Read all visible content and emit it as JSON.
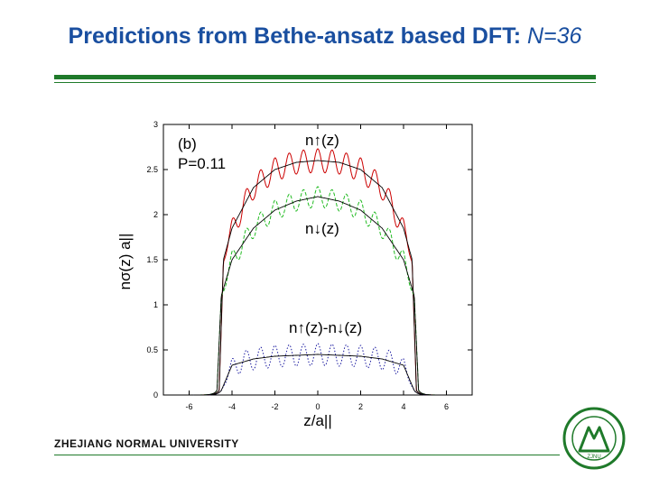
{
  "slide": {
    "title_main": "Predictions from Bethe-ansatz based DFT: ",
    "title_var": "N=36",
    "university": "ZHEJIANG NORMAL UNIVERSITY"
  },
  "logo": {
    "text": "ZJNU",
    "color": "#1f7a2a"
  },
  "chart_data": {
    "type": "line",
    "panel_label": "(b)",
    "parameter_label": "P=0.11",
    "xlabel": "z/a||",
    "ylabel": "nσ(z) a||",
    "xlim": [
      -7.2,
      7.2
    ],
    "ylim": [
      0,
      3
    ],
    "xticks": [
      "-6",
      "-4",
      "-2",
      "0",
      "2",
      "4",
      "6"
    ],
    "xtick_values": [
      -6,
      -4,
      -2,
      0,
      2,
      4,
      6
    ],
    "yticks": [
      "0",
      "0.5",
      "1",
      "1.5",
      "2",
      "2.5",
      "3"
    ],
    "ytick_values": [
      0,
      0.5,
      1,
      1.5,
      2,
      2.5,
      3
    ],
    "annotations": [
      "n↑(z)",
      "n↓(z)",
      "n↑(z)-n↓(z)"
    ],
    "series": [
      {
        "label": "n↑(z)",
        "color": "#cc0000",
        "style": "solid oscillating",
        "x": [
          -4.6,
          -4.4,
          -4.0,
          -3.0,
          -2.0,
          -1.0,
          0.0,
          1.0,
          2.0,
          3.0,
          4.0,
          4.4,
          4.6
        ],
        "y": [
          0.05,
          1.5,
          1.85,
          2.3,
          2.5,
          2.58,
          2.6,
          2.58,
          2.5,
          2.3,
          1.85,
          1.5,
          0.05
        ]
      },
      {
        "label": "n↓(z)",
        "color": "#22bb22",
        "style": "dashed oscillating",
        "x": [
          -4.7,
          -4.5,
          -4.0,
          -3.0,
          -2.0,
          -1.0,
          0.0,
          1.0,
          2.0,
          3.0,
          4.0,
          4.5,
          4.7
        ],
        "y": [
          0.05,
          1.1,
          1.5,
          1.85,
          2.05,
          2.15,
          2.2,
          2.15,
          2.05,
          1.85,
          1.5,
          1.1,
          0.05
        ]
      },
      {
        "label": "n↑(z)-n↓(z)",
        "color": "#1a1aa0",
        "style": "dotted oscillating",
        "x": [
          -4.5,
          -4.0,
          -3.0,
          -2.0,
          -1.0,
          0.0,
          1.0,
          2.0,
          3.0,
          4.0,
          4.5
        ],
        "y": [
          0.05,
          0.33,
          0.4,
          0.43,
          0.44,
          0.45,
          0.44,
          0.43,
          0.4,
          0.33,
          0.05
        ]
      }
    ]
  }
}
